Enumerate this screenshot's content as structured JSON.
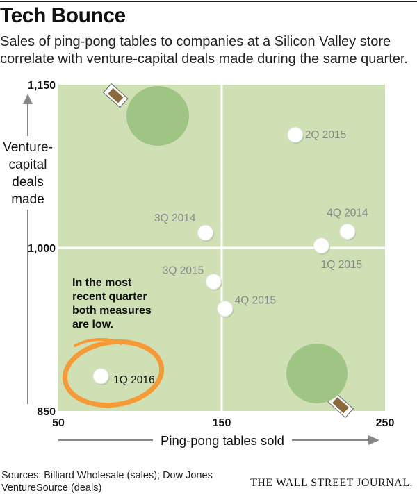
{
  "title": "Tech Bounce",
  "subtitle": "Sales of ping-pong tables to companies at a Silicon Valley store correlate with venture-capital deals made during the same quarter.",
  "source": "Sources: Billiard Wholesale (sales); Dow Jones VentureSource (deals)",
  "publisher": "THE WALL STREET JOURNAL.",
  "chart_data": {
    "type": "scatter",
    "xlabel": "Ping-pong tables sold",
    "ylabel": [
      "Venture-",
      "capital",
      "deals",
      "made"
    ],
    "xlim": [
      50,
      250
    ],
    "ylim": [
      850,
      1150
    ],
    "xticks": [
      "50",
      "150",
      "250"
    ],
    "yticks": [
      "850",
      "1,000",
      "1,150"
    ],
    "x_divider": 150,
    "y_divider": 1000,
    "points": [
      {
        "label": "2Q 2015",
        "x": 195,
        "y": 1104
      },
      {
        "label": "3Q 2014",
        "x": 140,
        "y": 1014
      },
      {
        "label": "4Q 2014",
        "x": 227,
        "y": 1015
      },
      {
        "label": "1Q 2015",
        "x": 211,
        "y": 1002
      },
      {
        "label": "3Q 2015",
        "x": 145,
        "y": 969
      },
      {
        "label": "4Q 2015",
        "x": 152,
        "y": 944
      },
      {
        "label": "1Q 2016",
        "x": 76,
        "y": 882
      }
    ],
    "annotation": "In the most recent quarter both measures are low.",
    "colors": {
      "background": "#cfe0b4",
      "divider": "#ffffff",
      "point": "#ffffff",
      "point_label": "#888888",
      "paddle": "#9fc585",
      "circle": "#f59a35",
      "axis_arrow": "#888888"
    }
  }
}
